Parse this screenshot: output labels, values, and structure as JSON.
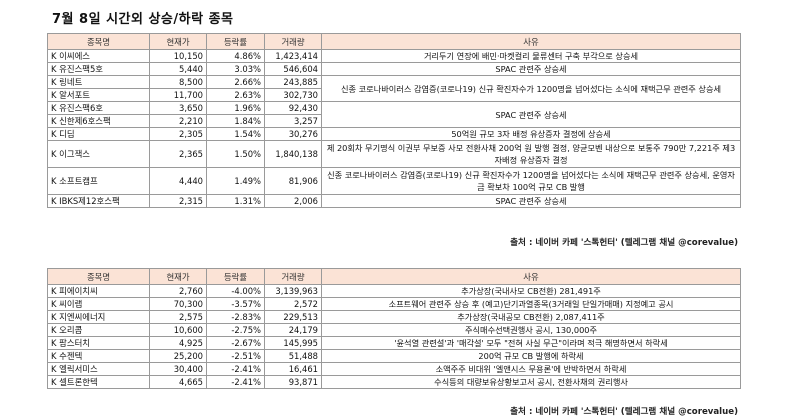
{
  "title": "7월 8일  시간외 상승/하락 종목",
  "headers": [
    "종목명",
    "현재가",
    "등락률",
    "거래량",
    "사유"
  ],
  "rise": [
    {
      "name": "K 이씨에스",
      "price": "10,150",
      "change": "4.86%",
      "volume": "1,423,414"
    },
    {
      "name": "K 유진스팩5호",
      "price": "5,440",
      "change": "3.03%",
      "volume": "546,604"
    },
    {
      "name": "K 링네트",
      "price": "8,500",
      "change": "2.66%",
      "volume": "243,885"
    },
    {
      "name": "K 알서포트",
      "price": "11,700",
      "change": "2.63%",
      "volume": "302,730"
    },
    {
      "name": "K 유진스팩6호",
      "price": "3,650",
      "change": "1.96%",
      "volume": "92,430"
    },
    {
      "name": "K 신한제6호스팩",
      "price": "2,210",
      "change": "1.84%",
      "volume": "3,257"
    },
    {
      "name": "K 디딤",
      "price": "2,305",
      "change": "1.54%",
      "volume": "30,276"
    },
    {
      "name": "K 이그잭스",
      "price": "2,365",
      "change": "1.50%",
      "volume": "1,840,138"
    },
    {
      "name": "K 소프트캠프",
      "price": "4,440",
      "change": "1.49%",
      "volume": "81,906"
    },
    {
      "name": "K IBKS제12호스팩",
      "price": "2,315",
      "change": "1.31%",
      "volume": "2,006"
    }
  ],
  "rise_reasons": [
    "거리두기 연장에 배민·마켓컬리 물류센터 구축 부각으로 상승세",
    "SPAC 관련주 상승세",
    "신종 코로나바이러스 감염증(코로나19) 신규 확진자수가 1200명을 넘어섰다는 소식에 재택근무 관련주 상승세",
    "SPAC 관련주 상승세",
    "50억원 규모 3자 배정 유상증자 결정에 상승세",
    "제 20회차 무기명식 이권부 무보증 사모 전환사채 200억 원 발행 결정, 양균모벤 내상으로 보통주 790만 7,221주 제3자배정 유상증자 결정",
    "신종 코로나바이러스 감염증(코로나19) 신규 확진자수가 1200명을 넘어섰다는 소식에 재택근무 관련주 상승세, 운영자금 확보차 100억 규모 CB 발행",
    "SPAC 관련주 상승세"
  ],
  "fall": [
    {
      "name": "K 피에이치씨",
      "price": "2,760",
      "change": "-4.00%",
      "volume": "3,139,963",
      "reason": "추가상장(국내사모 CB전환) 281,491주"
    },
    {
      "name": "K 씨이랩",
      "price": "70,300",
      "change": "-3.57%",
      "volume": "2,572",
      "reason": "소프트웨어 관련주 상승 후 (예고)단기과열종목(3거래일 단일가매매) 지정예고 공시"
    },
    {
      "name": "K 지엔씨에너지",
      "price": "2,575",
      "change": "-2.83%",
      "volume": "229,513",
      "reason": "추가상장(국내공모 CB전환) 2,087,411주"
    },
    {
      "name": "K 오리콤",
      "price": "10,600",
      "change": "-2.75%",
      "volume": "24,179",
      "reason": "주식매수선택권행사 공시, 130,000주"
    },
    {
      "name": "K 팜스터치",
      "price": "4,925",
      "change": "-2.67%",
      "volume": "145,995",
      "reason": "'윤석열 관련설'과 '매각설' 모두 \"전혀 사실 무근\"이라며 적극 해명하면서 하락세"
    },
    {
      "name": "K 수젠텍",
      "price": "25,200",
      "change": "-2.51%",
      "volume": "51,488",
      "reason": "200억 규모 CB 발행에 하락세"
    },
    {
      "name": "K 엘릭서미스",
      "price": "30,400",
      "change": "-2.41%",
      "volume": "16,461",
      "reason": "소액주주 비대위 '엘앤시스 무용론'에 반박하면서 하락세"
    },
    {
      "name": "K 셀트론한텍",
      "price": "4,665",
      "change": "-2.41%",
      "volume": "93,871",
      "reason": "수식등의 대량보유상황보고서 공시, 전환사채의 권리행사"
    }
  ],
  "source": "출처 : 네이버 카페 '스톡헌터' (텔레그램 채널 @corevalue)"
}
